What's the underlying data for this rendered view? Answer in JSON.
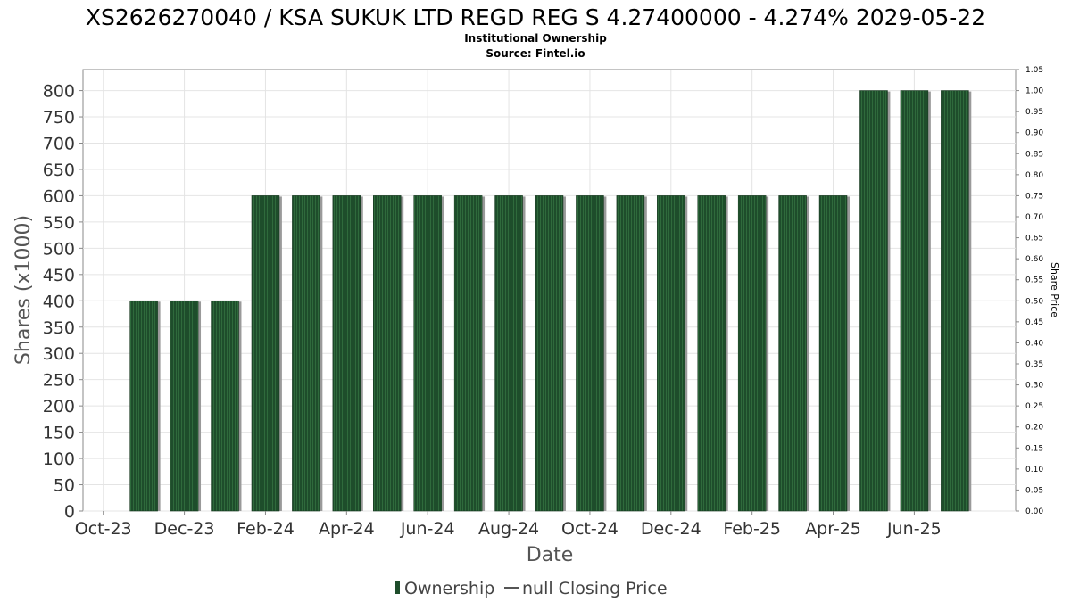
{
  "chart_data": {
    "type": "bar",
    "title": "XS2626270040 / KSA SUKUK LTD REGD REG S 4.27400000 - 4.274% 2029-05-22",
    "subtitle_lines": [
      "Institutional Ownership",
      "Source: Fintel.io"
    ],
    "xlabel": "Date",
    "ylabel": "Shares (x1000)",
    "y2label": "Share Price",
    "ylim": [
      0,
      840
    ],
    "y_ticks": [
      0,
      50,
      100,
      150,
      200,
      250,
      300,
      350,
      400,
      450,
      500,
      550,
      600,
      650,
      700,
      750,
      800
    ],
    "y2lim": [
      0,
      1.05
    ],
    "y2_ticks": [
      "0.00",
      "0.05",
      "0.10",
      "0.15",
      "0.20",
      "0.25",
      "0.30",
      "0.35",
      "0.40",
      "0.45",
      "0.50",
      "0.55",
      "0.60",
      "0.65",
      "0.70",
      "0.75",
      "0.80",
      "0.85",
      "0.90",
      "0.95",
      "1.00",
      "1.05"
    ],
    "x_tick_labels": [
      "Oct-23",
      "Dec-23",
      "Feb-24",
      "Apr-24",
      "Jun-24",
      "Aug-24",
      "Oct-24",
      "Dec-24",
      "Feb-25",
      "Apr-25",
      "Jun-25"
    ],
    "values": [
      400,
      400,
      400,
      600,
      600,
      600,
      600,
      600,
      600,
      600,
      600,
      600,
      600,
      600,
      600,
      600,
      600,
      600,
      800,
      800,
      800
    ],
    "grid": true,
    "legend_position": "bottom",
    "series": [
      {
        "name": "Ownership",
        "color": "#1e4d2b",
        "kind": "bar"
      },
      {
        "name": "null Closing Price",
        "color": "#555555",
        "kind": "line"
      }
    ]
  }
}
